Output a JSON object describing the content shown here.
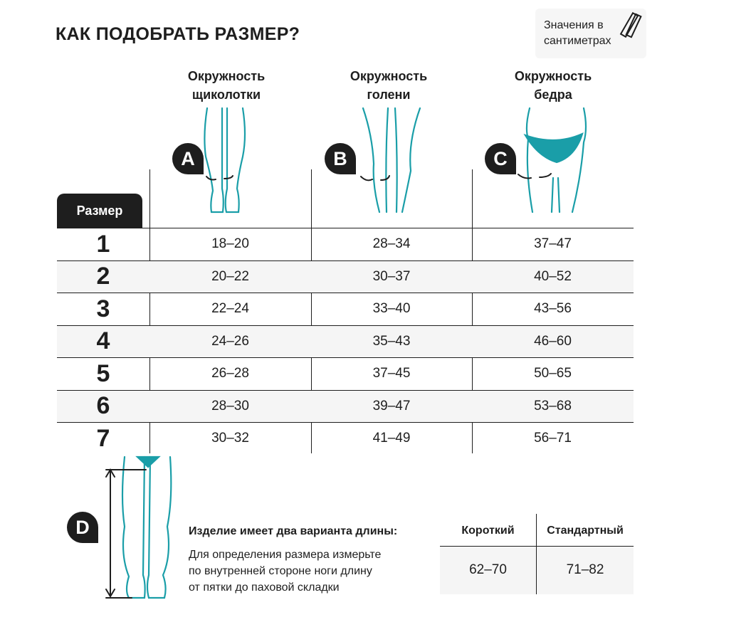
{
  "title": "КАК ПОДОБРАТЬ РАЗМЕР?",
  "units_note": {
    "line1": "Значения в",
    "line2": "сантиметрах",
    "icon": "ruler-icon"
  },
  "accent_color": "#1a9ea8",
  "columns": [
    {
      "letter": "A",
      "line1": "Окружность",
      "line2": "щиколотки"
    },
    {
      "letter": "B",
      "line1": "Окружность",
      "line2": "голени"
    },
    {
      "letter": "C",
      "line1": "Окружность",
      "line2": "бедра"
    }
  ],
  "size_header": "Размер",
  "rows": [
    {
      "size": "1",
      "a": "18–20",
      "b": "28–34",
      "c": "37–47"
    },
    {
      "size": "2",
      "a": "20–22",
      "b": "30–37",
      "c": "40–52"
    },
    {
      "size": "3",
      "a": "22–24",
      "b": "33–40",
      "c": "43–56"
    },
    {
      "size": "4",
      "a": "24–26",
      "b": "35–43",
      "c": "46–60"
    },
    {
      "size": "5",
      "a": "26–28",
      "b": "37–45",
      "c": "50–65"
    },
    {
      "size": "6",
      "a": "28–30",
      "b": "39–47",
      "c": "53–68"
    },
    {
      "size": "7",
      "a": "30–32",
      "b": "41–49",
      "c": "56–71"
    }
  ],
  "length": {
    "letter": "D",
    "title": "Изделие имеет два варианта длины:",
    "desc": [
      "Для определения размера измерьте",
      "по внутренней стороне ноги длину",
      "от пятки до паховой складки"
    ],
    "headers": [
      "Короткий",
      "Стандартный"
    ],
    "values": [
      "62–70",
      "71–82"
    ]
  }
}
